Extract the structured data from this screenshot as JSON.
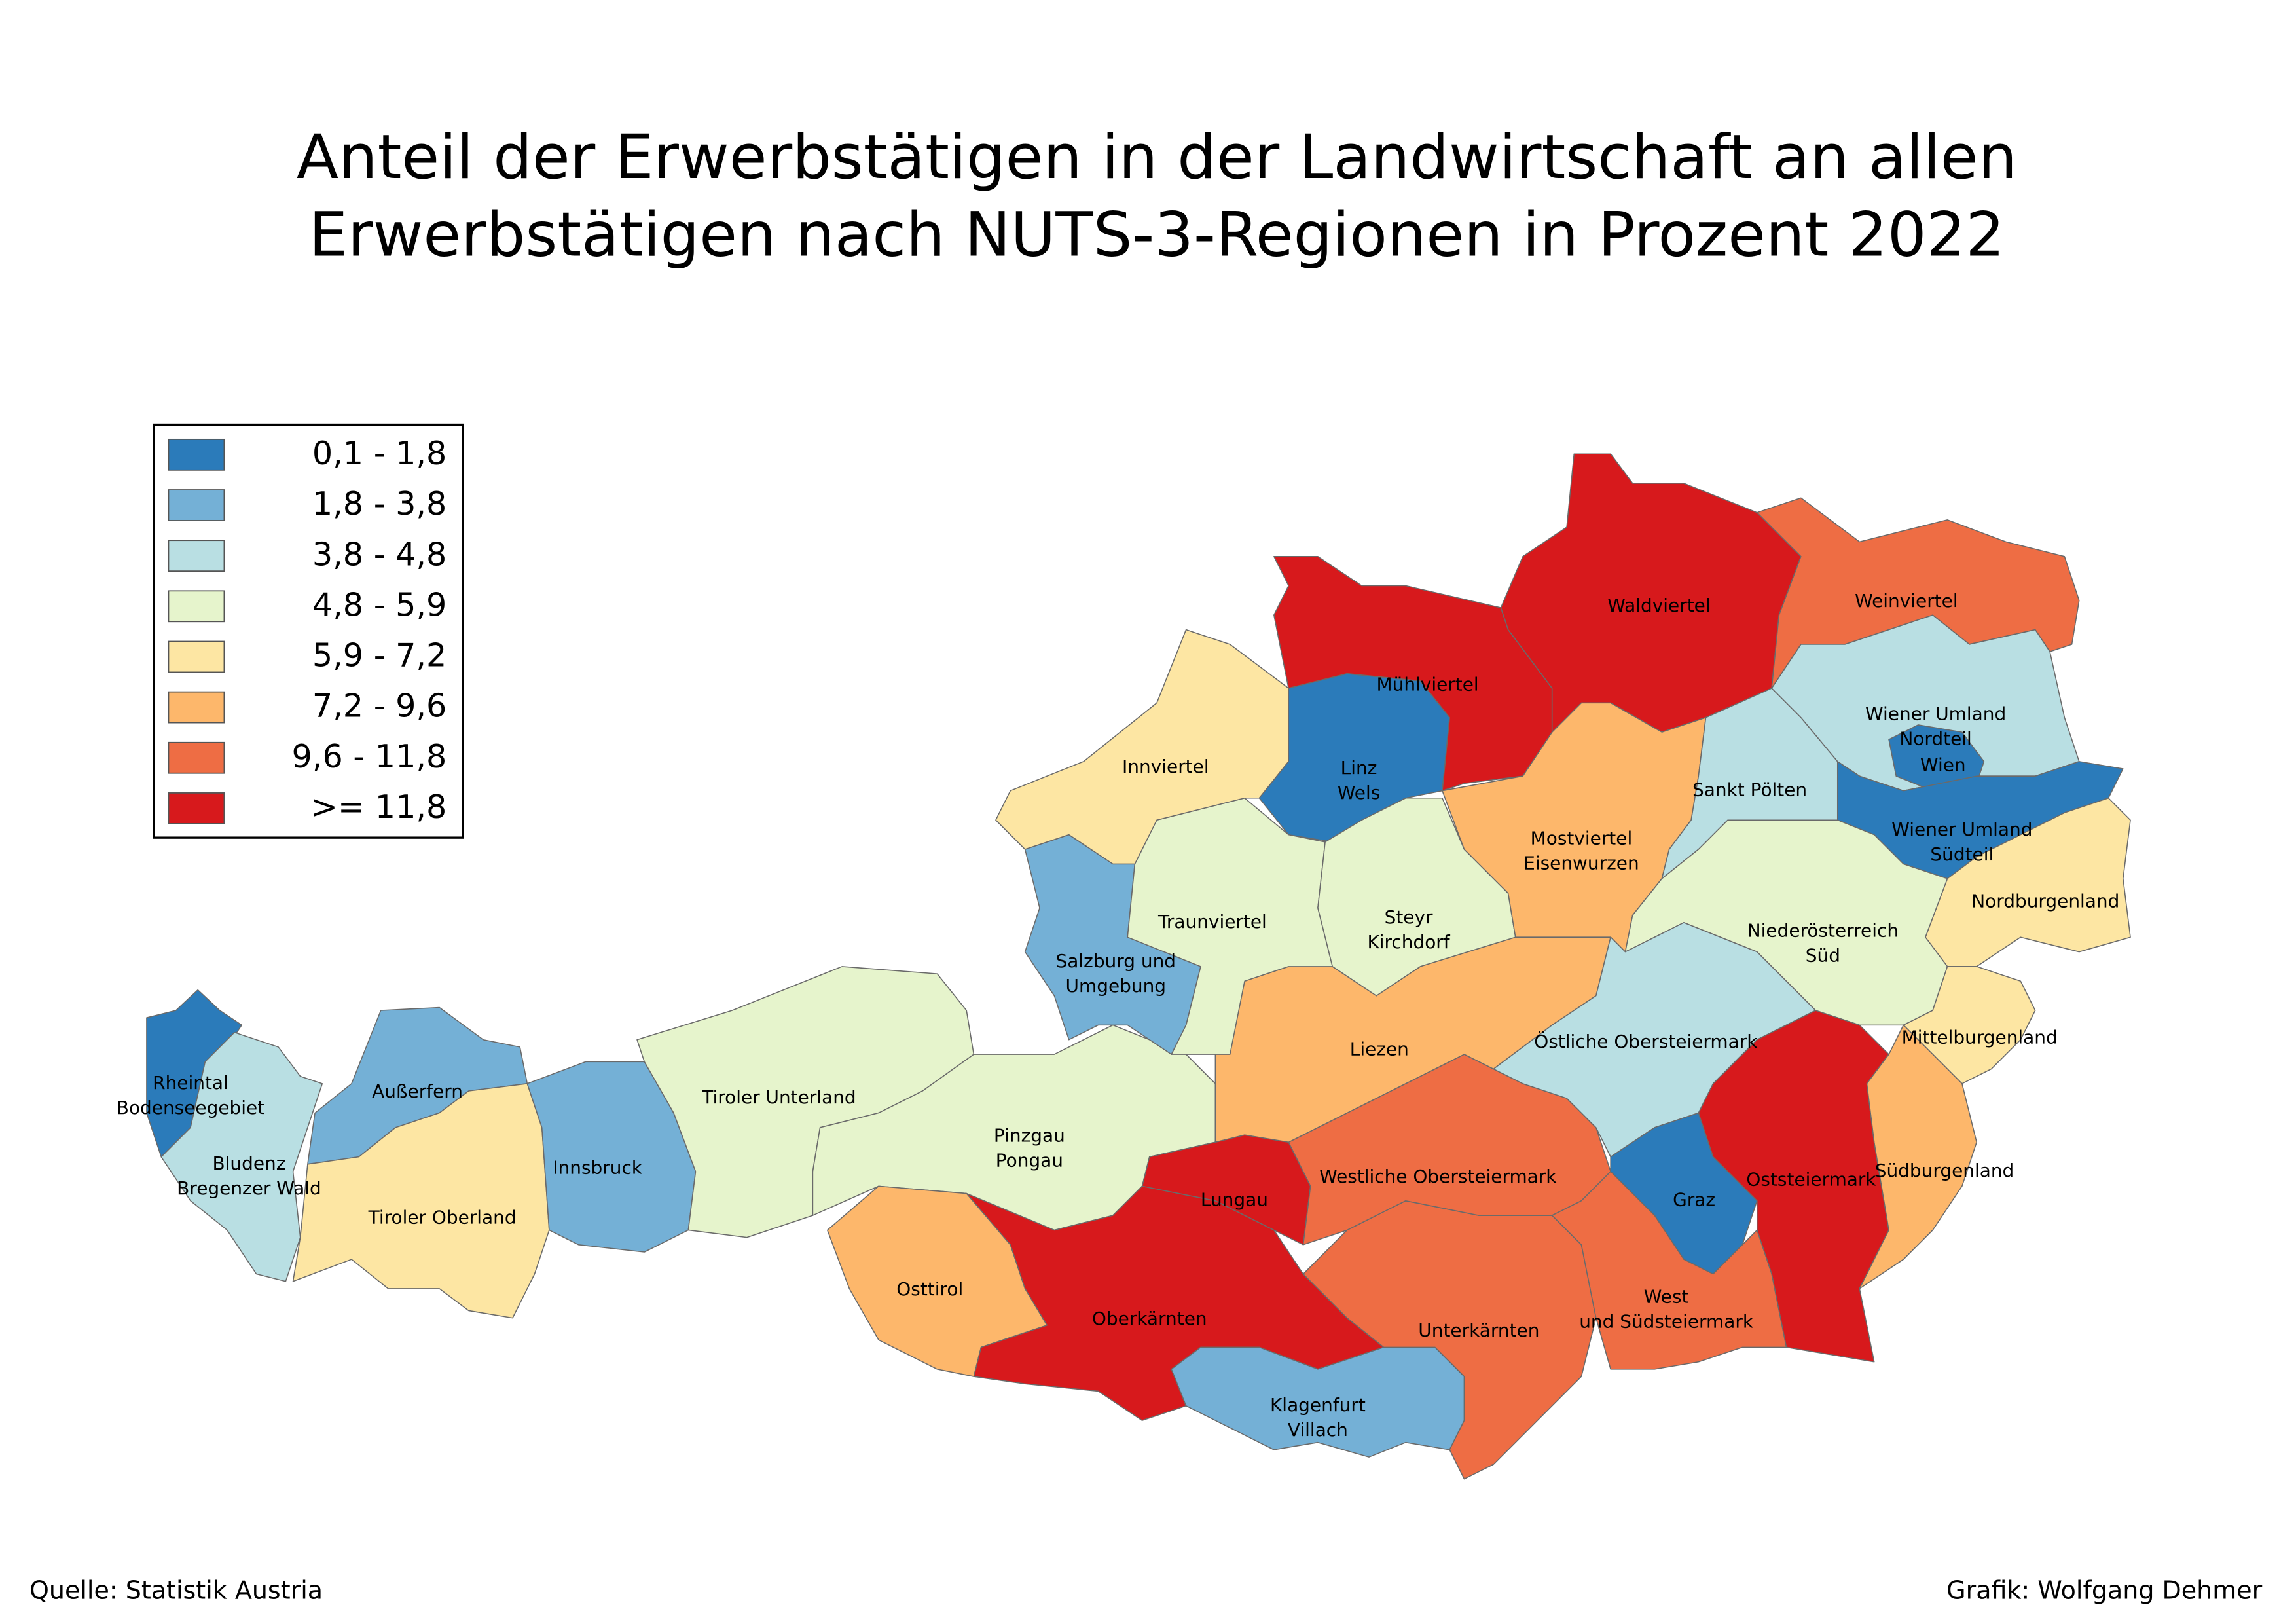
{
  "title": [
    "Anteil der Erwerbstätigen in der Landwirtschaft an allen",
    "Erwerbstätigen nach NUTS-3-Regionen in Prozent 2022"
  ],
  "legend": [
    {
      "label": "0,1 - 1,8",
      "color": "#2b7bba"
    },
    {
      "label": "1,8 - 3,8",
      "color": "#74b0d6"
    },
    {
      "label": "3,8 - 4,8",
      "color": "#b9dfe3"
    },
    {
      "label": "4,8 - 5,9",
      "color": "#e6f4cc"
    },
    {
      "label": "5,9 - 7,2",
      "color": "#fde6a3"
    },
    {
      "label": "7,2 - 9,6",
      "color": "#fdb76b"
    },
    {
      "label": "9,6 - 11,8",
      "color": "#ee6d44"
    },
    {
      "label": ">= 11,8",
      "color": "#d7191c"
    }
  ],
  "regions": [
    {
      "label": [
        "Rheintal",
        "Bodenseegebiet"
      ],
      "color": "#2b7bba"
    },
    {
      "label": [
        "Bludenz",
        "Bregenzer Wald"
      ],
      "color": "#b9dfe3"
    },
    {
      "label": [
        "Außerfern"
      ],
      "color": "#74b0d6"
    },
    {
      "label": [
        "Tiroler Oberland"
      ],
      "color": "#fde6a3"
    },
    {
      "label": [
        "Innsbruck"
      ],
      "color": "#74b0d6"
    },
    {
      "label": [
        "Tiroler Unterland"
      ],
      "color": "#e6f4cc"
    },
    {
      "label": [
        "Pinzgau",
        "Pongau"
      ],
      "color": "#e6f4cc"
    },
    {
      "label": [
        "Osttirol"
      ],
      "color": "#fdb76b"
    },
    {
      "label": [
        "Oberkärnten"
      ],
      "color": "#d7191c"
    },
    {
      "label": [
        "Lungau"
      ],
      "color": "#d7191c"
    },
    {
      "label": [
        "Klagenfurt",
        "Villach"
      ],
      "color": "#74b0d6"
    },
    {
      "label": [
        "Unterkärnten"
      ],
      "color": "#ee6d44"
    },
    {
      "label": [
        "Westliche Obersteiermark"
      ],
      "color": "#ee6d44"
    },
    {
      "label": [
        "Liezen"
      ],
      "color": "#fdb76b"
    },
    {
      "label": [
        "Salzburg und",
        "Umgebung"
      ],
      "color": "#74b0d6"
    },
    {
      "label": [
        "Traunviertel"
      ],
      "color": "#e6f4cc"
    },
    {
      "label": [
        "Innviertel"
      ],
      "color": "#fde6a3"
    },
    {
      "label": [
        "Linz",
        "Wels"
      ],
      "color": "#2b7bba"
    },
    {
      "label": [
        "Steyr",
        "Kirchdorf"
      ],
      "color": "#e6f4cc"
    },
    {
      "label": [
        "Mühlviertel"
      ],
      "color": "#d7191c"
    },
    {
      "label": [
        "Waldviertel"
      ],
      "color": "#d7191c"
    },
    {
      "label": [
        "Mostviertel",
        "Eisenwurzen"
      ],
      "color": "#fdb76b"
    },
    {
      "label": [
        "Sankt Pölten"
      ],
      "color": "#b9dfe3"
    },
    {
      "label": [
        "Weinviertel"
      ],
      "color": "#ee6d44"
    },
    {
      "label": [
        "Wiener Umland",
        "Nordteil"
      ],
      "color": "#b9dfe3"
    },
    {
      "label": [
        "Wien"
      ],
      "color": "#2b7bba"
    },
    {
      "label": [
        "Wiener Umland",
        "Südteil"
      ],
      "color": "#2b7bba"
    },
    {
      "label": [
        "Nordburgenland"
      ],
      "color": "#fde6a3"
    },
    {
      "label": [
        "Niederösterreich",
        "Süd"
      ],
      "color": "#e6f4cc"
    },
    {
      "label": [
        "Östliche Obersteiermark"
      ],
      "color": "#b9dfe3"
    },
    {
      "label": [
        "Mittelburgenland"
      ],
      "color": "#fde6a3"
    },
    {
      "label": [
        "Graz"
      ],
      "color": "#2b7bba"
    },
    {
      "label": [
        "Oststeiermark"
      ],
      "color": "#d7191c"
    },
    {
      "label": [
        "Südburgenland"
      ],
      "color": "#fdb76b"
    },
    {
      "label": [
        "West",
        "und Südsteiermark"
      ],
      "color": "#ee6d44"
    }
  ],
  "source": "Quelle: Statistik Austria",
  "credit": "Grafik: Wolfgang Dehmer"
}
